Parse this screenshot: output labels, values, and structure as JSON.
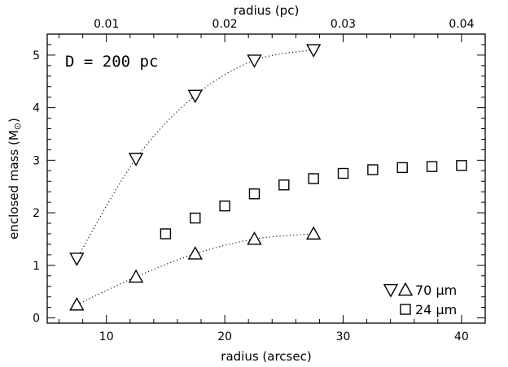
{
  "chart_data": {
    "type": "scatter",
    "annotation": "D = 200 pc",
    "xlabel_bottom": "radius (arcsec)",
    "xlabel_top": "radius (pc)",
    "ylabel_main": "enclosed mass (M",
    "ylabel_close": ")",
    "xlim": [
      5,
      42
    ],
    "ylim": [
      -0.1,
      5.4
    ],
    "x_ticks_bottom": [
      10,
      20,
      30,
      40
    ],
    "x_tick_labels_bottom": [
      "10",
      "20",
      "30",
      "40"
    ],
    "x_minor_step_bottom": 2,
    "x_ticks_top": [
      0.01,
      0.02,
      0.03,
      0.04
    ],
    "x_tick_labels_top": [
      "0.01",
      "0.02",
      "0.03",
      "0.04"
    ],
    "x_minor_step_top": 0.002,
    "y_ticks": [
      0,
      1,
      2,
      3,
      4,
      5
    ],
    "y_tick_labels": [
      "0",
      "1",
      "2",
      "3",
      "4",
      "5"
    ],
    "y_minor_step": 0.2,
    "series": [
      {
        "name": "70 μm",
        "marker": "triangle-down",
        "connected": true,
        "x": [
          7.5,
          12.5,
          17.5,
          22.5,
          27.5
        ],
        "y": [
          1.13,
          3.03,
          4.23,
          4.9,
          5.1
        ]
      },
      {
        "name": "70 μm",
        "marker": "triangle-up",
        "connected": true,
        "x": [
          7.5,
          12.5,
          17.5,
          22.5,
          27.5
        ],
        "y": [
          0.25,
          0.78,
          1.22,
          1.5,
          1.6
        ]
      },
      {
        "name": "24 μm",
        "marker": "square",
        "connected": false,
        "x": [
          15,
          17.5,
          20,
          22.5,
          25,
          27.5,
          30,
          32.5,
          35,
          37.5,
          40
        ],
        "y": [
          1.6,
          1.9,
          2.13,
          2.36,
          2.53,
          2.65,
          2.75,
          2.82,
          2.86,
          2.88,
          2.9
        ]
      }
    ],
    "legend": {
      "placement": "bottom-right",
      "entries": [
        {
          "label": "70 μm",
          "markers": [
            "triangle-down",
            "triangle-up"
          ]
        },
        {
          "label": "24 μm",
          "markers": [
            "square"
          ]
        }
      ]
    },
    "grid": false
  }
}
